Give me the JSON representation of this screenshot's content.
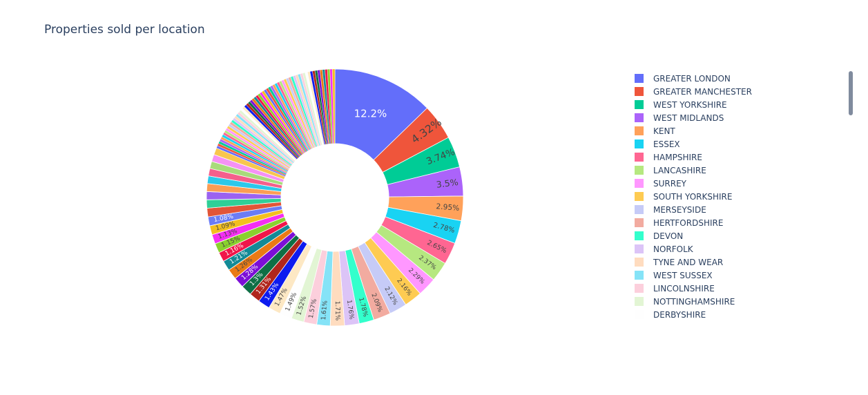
{
  "chart_data": {
    "type": "pie",
    "title": "Properties sold per location",
    "hole": 0.42,
    "labeled_slices": [
      {
        "name": "GREATER LONDON",
        "value": 12.2,
        "label": "12.2%",
        "color": "#636efa"
      },
      {
        "name": "GREATER MANCHESTER",
        "value": 4.32,
        "label": "4.32%",
        "color": "#EF553B"
      },
      {
        "name": "WEST YORKSHIRE",
        "value": 3.74,
        "label": "3.74%",
        "color": "#00cc96"
      },
      {
        "name": "WEST MIDLANDS",
        "value": 3.5,
        "label": "3.5%",
        "color": "#ab63fa"
      },
      {
        "name": "KENT",
        "value": 2.95,
        "label": "2.95%",
        "color": "#FFA15A"
      },
      {
        "name": "ESSEX",
        "value": 2.78,
        "label": "2.78%",
        "color": "#19d3f3"
      },
      {
        "name": "HAMPSHIRE",
        "value": 2.65,
        "label": "2.65%",
        "color": "#FF6692"
      },
      {
        "name": "LANCASHIRE",
        "value": 2.37,
        "label": "2.37%",
        "color": "#B6E880"
      },
      {
        "name": "SURREY",
        "value": 2.29,
        "label": "2.29%",
        "color": "#FF97FF"
      },
      {
        "name": "SOUTH YORKSHIRE",
        "value": 2.16,
        "label": "2.16%",
        "color": "#FECB52"
      },
      {
        "name": "MERSEYSIDE",
        "value": 2.12,
        "label": "2.12%",
        "color": "#c6cbf7"
      },
      {
        "name": "HERTFORDSHIRE",
        "value": 2.09,
        "label": "2.09%",
        "color": "#f2aba0"
      },
      {
        "name": "DEVON",
        "value": 1.78,
        "label": "1.78%",
        "color": "#33ffcc"
      },
      {
        "name": "NORFOLK",
        "value": 1.76,
        "label": "1.76%",
        "color": "#dcc4f7"
      },
      {
        "name": "TYNE AND WEAR",
        "value": 1.71,
        "label": "1.71%",
        "color": "#ffdcbf"
      },
      {
        "name": "WEST SUSSEX",
        "value": 1.61,
        "label": "1.61%",
        "color": "#85e3f7"
      },
      {
        "name": "LINCOLNSHIRE",
        "value": 1.57,
        "label": "1.57%",
        "color": "#fccfdc"
      },
      {
        "name": "NOTTINGHAMSHIRE",
        "value": 1.52,
        "label": "1.52%",
        "color": "#e2f5d4"
      },
      {
        "name": "DERBYSHIRE",
        "value": 1.49,
        "label": "1.49%",
        "color": "#fefefe"
      },
      {
        "name": "",
        "value": 1.47,
        "label": "1.47%",
        "color": "#fde8c4"
      },
      {
        "name": "",
        "value": 1.43,
        "label": "1.43%",
        "color": "#0d1bef"
      },
      {
        "name": "",
        "value": 1.31,
        "label": "1.31%",
        "color": "#b0261c"
      },
      {
        "name": "",
        "value": 1.3,
        "label": "1.3%",
        "color": "#0e6f45"
      },
      {
        "name": "",
        "value": 1.28,
        "label": "1.28%",
        "color": "#7c0fd6"
      },
      {
        "name": "",
        "value": 1.26,
        "label": "1.26%",
        "color": "#ea7a14"
      },
      {
        "name": "",
        "value": 1.21,
        "label": "1.21%",
        "color": "#138a96"
      },
      {
        "name": "",
        "value": 1.16,
        "label": "1.16%",
        "color": "#f0154a"
      },
      {
        "name": "",
        "value": 1.15,
        "label": "1.15%",
        "color": "#8ad12e"
      },
      {
        "name": "",
        "value": 1.13,
        "label": "1.13%",
        "color": "#f42ff2"
      },
      {
        "name": "",
        "value": 1.09,
        "label": "1.09%",
        "color": "#f3bf1f"
      },
      {
        "name": "",
        "value": 1.08,
        "label": "1.08%",
        "color": "#6b7cf5"
      },
      {
        "name": "",
        "value": 1.04,
        "label": "",
        "color": "#e25538"
      },
      {
        "name": "",
        "value": 1.0,
        "label": "",
        "color": "#2fcf97"
      },
      {
        "name": "",
        "value": 0.98,
        "label": "",
        "color": "#9b62f0"
      },
      {
        "name": "",
        "value": 0.95,
        "label": "",
        "color": "#fb9d54"
      },
      {
        "name": "",
        "value": 0.92,
        "label": "",
        "color": "#2cc8ea"
      },
      {
        "name": "",
        "value": 0.9,
        "label": "",
        "color": "#f55f8c"
      },
      {
        "name": "",
        "value": 0.87,
        "label": "",
        "color": "#a8db7b"
      },
      {
        "name": "",
        "value": 0.85,
        "label": "",
        "color": "#f591f5"
      },
      {
        "name": "",
        "value": 0.83,
        "label": "",
        "color": "#f8c64e"
      }
    ],
    "remainder_value": 17.9,
    "remainder_colors": [
      "#636efa",
      "#EF553B",
      "#00cc96",
      "#ab63fa",
      "#FFA15A",
      "#19d3f3",
      "#FF6692",
      "#B6E880",
      "#FF97FF",
      "#FECB52",
      "#c6cbf7",
      "#f2aba0",
      "#33ffcc",
      "#dcc4f7",
      "#ffdcbf",
      "#85e3f7",
      "#fccfdc",
      "#e2f5d4",
      "#fefefe",
      "#fde8c4",
      "#0d1bef",
      "#b0261c",
      "#0e6f45",
      "#7c0fd6",
      "#ea7a14",
      "#138a96",
      "#f0154a",
      "#8ad12e",
      "#f42ff2",
      "#f3bf1f"
    ],
    "remainder_slice_count": 60
  },
  "legend": {
    "items": [
      {
        "label": "GREATER LONDON",
        "color": "#636efa"
      },
      {
        "label": "GREATER MANCHESTER",
        "color": "#EF553B"
      },
      {
        "label": "WEST YORKSHIRE",
        "color": "#00cc96"
      },
      {
        "label": "WEST MIDLANDS",
        "color": "#ab63fa"
      },
      {
        "label": "KENT",
        "color": "#FFA15A"
      },
      {
        "label": "ESSEX",
        "color": "#19d3f3"
      },
      {
        "label": "HAMPSHIRE",
        "color": "#FF6692"
      },
      {
        "label": "LANCASHIRE",
        "color": "#B6E880"
      },
      {
        "label": "SURREY",
        "color": "#FF97FF"
      },
      {
        "label": "SOUTH YORKSHIRE",
        "color": "#FECB52"
      },
      {
        "label": "MERSEYSIDE",
        "color": "#c6cbf7"
      },
      {
        "label": "HERTFORDSHIRE",
        "color": "#f2aba0"
      },
      {
        "label": "DEVON",
        "color": "#33ffcc"
      },
      {
        "label": "NORFOLK",
        "color": "#dcc4f7"
      },
      {
        "label": "TYNE AND WEAR",
        "color": "#ffdcbf"
      },
      {
        "label": "WEST SUSSEX",
        "color": "#85e3f7"
      },
      {
        "label": "LINCOLNSHIRE",
        "color": "#fccfdc"
      },
      {
        "label": "NOTTINGHAMSHIRE",
        "color": "#e2f5d4"
      },
      {
        "label": "DERBYSHIRE",
        "color": "#fefefe"
      }
    ]
  }
}
